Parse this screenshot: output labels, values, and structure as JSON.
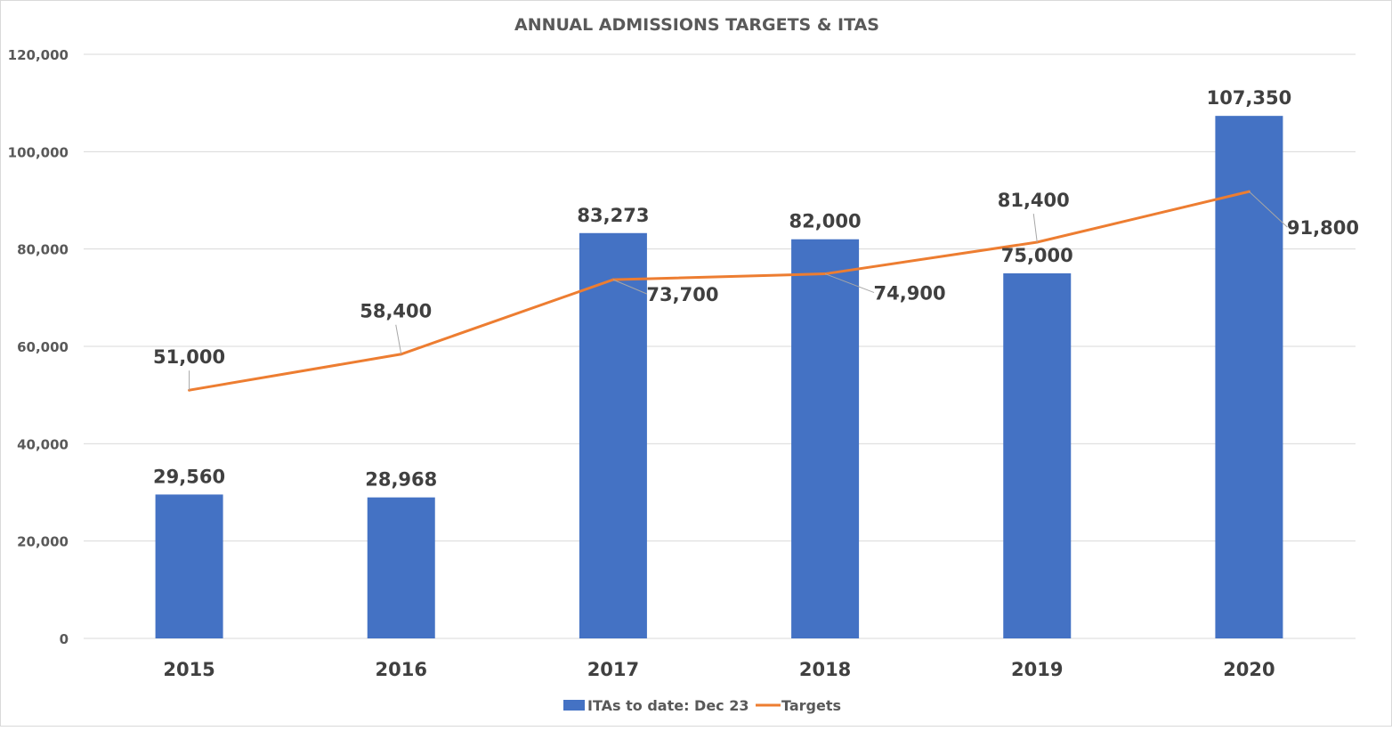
{
  "chart_data": {
    "type": "bar+line",
    "title": "ANNUAL ADMISSIONS TARGETS & ITAS",
    "categories": [
      "2015",
      "2016",
      "2017",
      "2018",
      "2019",
      "2020"
    ],
    "series": [
      {
        "name": "ITAs to date: Dec 23",
        "type": "bar",
        "color": "#4472C4",
        "values": [
          29560,
          28968,
          83273,
          82000,
          75000,
          107350
        ],
        "labels": [
          "29,560",
          "28,968",
          "83,273",
          "82,000",
          "75,000",
          "107,350"
        ]
      },
      {
        "name": "Targets",
        "type": "line",
        "color": "#ED7D31",
        "values": [
          51000,
          58400,
          73700,
          74900,
          81400,
          91800
        ],
        "labels": [
          "51,000",
          "58,400",
          "73,700",
          "74,900",
          "81,400",
          "91,800"
        ]
      }
    ],
    "ylim": [
      0,
      120000
    ],
    "yticks": [
      "0",
      "20,000",
      "40,000",
      "60,000",
      "80,000",
      "100,000",
      "120,000"
    ],
    "grid": true,
    "legend": "bottom"
  }
}
